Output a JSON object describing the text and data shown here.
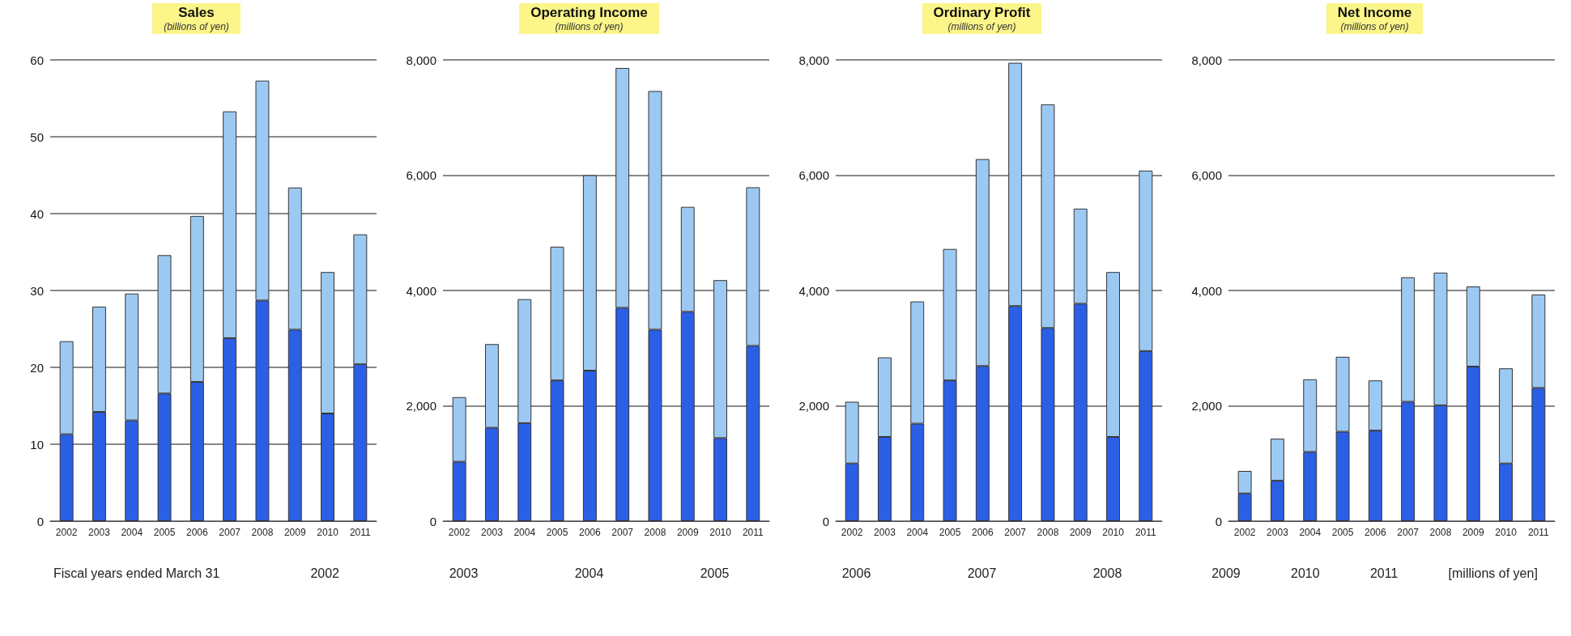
{
  "chart_data": [
    {
      "type": "bar",
      "title": "Sales",
      "subtitle": "(billions of yen)",
      "stacked": true,
      "grid": "y",
      "categories": [
        "2002",
        "2003",
        "2004",
        "2005",
        "2006",
        "2007",
        "2008",
        "2009",
        "2010",
        "2011"
      ],
      "ylim": [
        0,
        60
      ],
      "yticks": [
        0,
        10,
        20,
        30,
        40,
        50,
        60
      ],
      "series": [
        {
          "color": "#2b5fe6",
          "values": [
            11.3,
            14.2,
            13.1,
            16.6,
            18.1,
            23.8,
            28.7,
            24.9,
            14.0,
            20.4
          ]
        },
        {
          "color": "#9cc9f2",
          "values": [
            12.1,
            13.7,
            16.5,
            18.0,
            21.6,
            29.5,
            28.6,
            18.5,
            18.4,
            16.9
          ]
        }
      ],
      "annotations": [
        "Fiscal years ended March 31",
        "2002"
      ]
    },
    {
      "type": "bar",
      "title": "Operating Income",
      "subtitle": "(millions of yen)",
      "stacked": true,
      "grid": "y",
      "categories": [
        "2002",
        "2003",
        "2004",
        "2005",
        "2006",
        "2007",
        "2008",
        "2009",
        "2010",
        "2011"
      ],
      "ylim": [
        0,
        8000
      ],
      "yticks": [
        0,
        {
          "value": 2000,
          "label": "2,000"
        },
        {
          "value": 4000,
          "label": "4,000"
        },
        {
          "value": 6000,
          "label": "6,000"
        },
        {
          "value": 8000,
          "label": "8,000"
        }
      ],
      "series": [
        {
          "color": "#2b5fe6",
          "values": [
            1030,
            1620,
            1700,
            2440,
            2610,
            3700,
            3320,
            3630,
            1440,
            3040
          ]
        },
        {
          "color": "#9cc9f2",
          "values": [
            1120,
            1450,
            2150,
            2320,
            3390,
            4160,
            4140,
            1820,
            2740,
            2750
          ]
        }
      ],
      "annotations": [
        "2003",
        "2004",
        "2005"
      ]
    },
    {
      "type": "bar",
      "title": "Ordinary Profit",
      "subtitle": "(millions of yen)",
      "stacked": true,
      "grid": "y",
      "categories": [
        "2002",
        "2003",
        "2004",
        "2005",
        "2006",
        "2007",
        "2008",
        "2009",
        "2010",
        "2011"
      ],
      "ylim": [
        0,
        8000
      ],
      "yticks": [
        0,
        {
          "value": 2000,
          "label": "2,000"
        },
        {
          "value": 4000,
          "label": "4,000"
        },
        {
          "value": 6000,
          "label": "6,000"
        },
        {
          "value": 8000,
          "label": "8,000"
        }
      ],
      "series": [
        {
          "color": "#2b5fe6",
          "values": [
            1000,
            1460,
            1690,
            2440,
            2690,
            3730,
            3350,
            3770,
            1460,
            2950
          ]
        },
        {
          "color": "#9cc9f2",
          "values": [
            1070,
            1380,
            2120,
            2280,
            3590,
            4220,
            3880,
            1650,
            2860,
            3130
          ]
        }
      ],
      "annotations": [
        "2006",
        "2007",
        "2008"
      ]
    },
    {
      "type": "bar",
      "title": "Net Income",
      "subtitle": "(millions of yen)",
      "stacked": true,
      "grid": "y",
      "categories": [
        "2002",
        "2003",
        "2004",
        "2005",
        "2006",
        "2007",
        "2008",
        "2009",
        "2010",
        "2011"
      ],
      "ylim": [
        0,
        8000
      ],
      "yticks": [
        0,
        {
          "value": 2000,
          "label": "2,000"
        },
        {
          "value": 4000,
          "label": "4,000"
        },
        {
          "value": 6000,
          "label": "6,000"
        },
        {
          "value": 8000,
          "label": "8,000"
        }
      ],
      "series": [
        {
          "color": "#2b5fe6",
          "values": [
            480,
            700,
            1200,
            1550,
            1570,
            2070,
            2010,
            2680,
            1000,
            2310
          ]
        },
        {
          "color": "#9cc9f2",
          "values": [
            390,
            730,
            1260,
            1300,
            870,
            2160,
            2300,
            1390,
            1650,
            1620
          ]
        }
      ],
      "annotations": [
        "2009",
        "2010",
        "2011",
        "[millions of yen]"
      ]
    }
  ]
}
